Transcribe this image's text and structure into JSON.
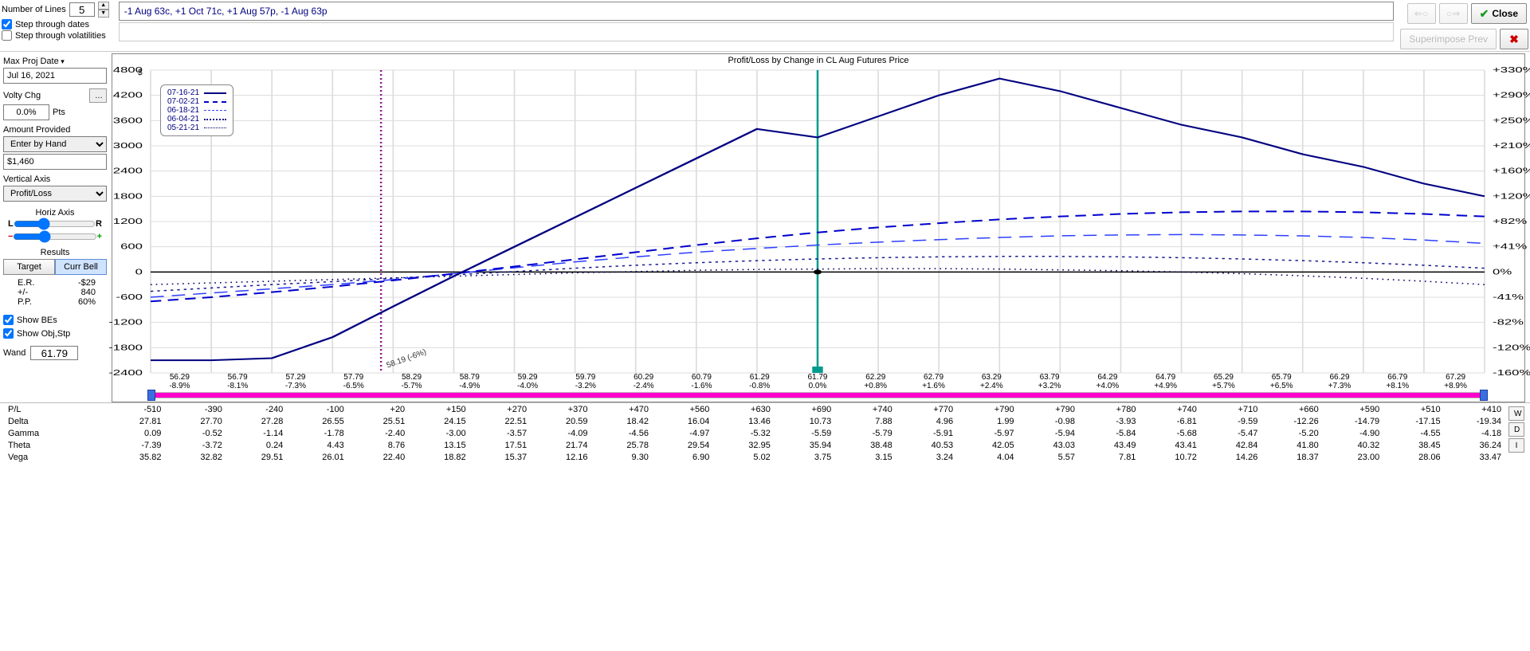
{
  "header": {
    "numLinesLabel": "Number of Lines",
    "numLines": "5",
    "stepDatesLabel": "Step through dates",
    "stepVolsLabel": "Step through volatilities",
    "stepDatesChecked": true,
    "stepVolsChecked": false,
    "strategy": "-1 Aug 63c, +1 Oct 71c, +1 Aug 57p, -1 Aug 63p",
    "closeLabel": "Close",
    "navPrev": "⇐○",
    "navNext": "○⇒",
    "superimposePrev": "Superimpose Prev",
    "bigX": "✖"
  },
  "left": {
    "maxProjDateLabel": "Max Proj Date",
    "maxProjDate": "Jul 16, 2021",
    "voltyChgLabel": "Volty Chg",
    "voltyChg": "0.0%",
    "pts": "Pts",
    "amountProvidedLabel": "Amount Provided",
    "amountProvidedMode": "Enter by Hand",
    "amount": "$1,460",
    "verticalAxisLabel": "Vertical Axis",
    "verticalAxis": "Profit/Loss",
    "horizAxisLabel": "Horiz Axis",
    "L": "L",
    "R": "R",
    "resultsLabel": "Results",
    "tabTarget": "Target",
    "tabCurrBell": "Curr Bell",
    "stats": {
      "erLabel": "E.R.",
      "er": "-$29",
      "pmLabel": "+/-",
      "pm": "840",
      "ppLabel": "P.P.",
      "pp": "60%"
    },
    "showBEsLabel": "Show BEs",
    "showObjStpLabel": "Show Obj,Stp",
    "showBEsChecked": true,
    "showObjStpChecked": true,
    "wandLabel": "Wand",
    "wand": "61.79"
  },
  "chart": {
    "title": "Profit/Loss by Change in CL Aug Futures Price",
    "yUnit": "$",
    "yTicks": [
      4800,
      4200,
      3600,
      3000,
      2400,
      1800,
      1200,
      600,
      0,
      -600,
      -1200,
      -1800,
      -2400
    ],
    "yTicksRight": [
      "+330%",
      "+290%",
      "+250%",
      "+210%",
      "+160%",
      "+120%",
      "+82%",
      "+41%",
      "0%",
      "-41%",
      "-82%",
      "-120%",
      "-160%"
    ],
    "xTop": [
      "56.29",
      "56.79",
      "57.29",
      "57.79",
      "58.29",
      "58.79",
      "59.29",
      "59.79",
      "60.29",
      "60.79",
      "61.29",
      "61.79",
      "62.29",
      "62.79",
      "63.29",
      "63.79",
      "64.29",
      "64.79",
      "65.29",
      "65.79",
      "66.29",
      "66.79",
      "67.29"
    ],
    "xBottom": [
      "-8.9%",
      "-8.1%",
      "-7.3%",
      "-6.5%",
      "-5.7%",
      "-4.9%",
      "-4.0%",
      "-3.2%",
      "-2.4%",
      "-1.6%",
      "-0.8%",
      "0.0%",
      "+0.8%",
      "+1.6%",
      "+2.4%",
      "+3.2%",
      "+4.0%",
      "+4.9%",
      "+5.7%",
      "+6.5%",
      "+7.3%",
      "+8.1%",
      "+8.9%"
    ],
    "legend": [
      "07-16-21",
      "07-02-21",
      "06-18-21",
      "06-04-21",
      "05-21-21"
    ],
    "markers": {
      "purpleLineX": 58.19,
      "tealLineX": 61.79,
      "zeroPointX": 61.79,
      "annotation": "58.19 (-6%)"
    },
    "xmin": 56.29,
    "xmax": 67.29,
    "ymin": -2400,
    "ymax": 4800,
    "series": {
      "s0_solid": {
        "color": "#000080",
        "width": 2,
        "dash": "",
        "y": [
          -2100,
          -2100,
          -2050,
          -1550,
          -820,
          -100,
          600,
          1300,
          2000,
          2700,
          3400,
          3200,
          3700,
          4200,
          4600,
          4300,
          3900,
          3500,
          3200,
          2800,
          2500,
          2100,
          1800,
          1450,
          1100
        ]
      },
      "s1_dash43": {
        "color": "#0000cd",
        "width": 2,
        "dash": "8,5",
        "y": [
          -700,
          -600,
          -480,
          -350,
          -200,
          -40,
          130,
          300,
          470,
          640,
          800,
          940,
          1060,
          1160,
          1250,
          1320,
          1380,
          1420,
          1440,
          1440,
          1420,
          1380,
          1320,
          1240,
          1140,
          1020
        ]
      },
      "s2_dash33": {
        "color": "#2e3fff",
        "width": 1.5,
        "dash": "10,6",
        "y": [
          -600,
          -500,
          -400,
          -300,
          -180,
          -40,
          100,
          240,
          360,
          470,
          560,
          640,
          710,
          770,
          820,
          860,
          880,
          890,
          880,
          860,
          820,
          760,
          680,
          580,
          460
        ]
      },
      "s3_dot": {
        "color": "#1a1a8c",
        "width": 1.5,
        "dash": "2,3",
        "y": [
          -460,
          -380,
          -300,
          -230,
          -150,
          -70,
          10,
          90,
          160,
          220,
          270,
          310,
          340,
          360,
          370,
          370,
          360,
          340,
          310,
          270,
          220,
          160,
          90,
          10,
          -80
        ]
      },
      "s4_dotfine": {
        "color": "#000066",
        "width": 1.5,
        "dash": "1,3",
        "y": [
          -300,
          -260,
          -220,
          -180,
          -140,
          -100,
          -60,
          -20,
          10,
          40,
          60,
          70,
          80,
          80,
          70,
          50,
          30,
          0,
          -40,
          -90,
          -150,
          -220,
          -300
        ]
      }
    }
  },
  "greeks": {
    "labels": [
      "P/L",
      "Delta",
      "Gamma",
      "Theta",
      "Vega"
    ],
    "rows": {
      "P/L": [
        "-510",
        "-390",
        "-240",
        "-100",
        "+20",
        "+150",
        "+270",
        "+370",
        "+470",
        "+560",
        "+630",
        "+690",
        "+740",
        "+770",
        "+790",
        "+790",
        "+780",
        "+740",
        "+710",
        "+660",
        "+590",
        "+510",
        "+410"
      ],
      "Delta": [
        "27.81",
        "27.70",
        "27.28",
        "26.55",
        "25.51",
        "24.15",
        "22.51",
        "20.59",
        "18.42",
        "16.04",
        "13.46",
        "10.73",
        "7.88",
        "4.96",
        "1.99",
        "-0.98",
        "-3.93",
        "-6.81",
        "-9.59",
        "-12.26",
        "-14.79",
        "-17.15",
        "-19.34"
      ],
      "Gamma": [
        "0.09",
        "-0.52",
        "-1.14",
        "-1.78",
        "-2.40",
        "-3.00",
        "-3.57",
        "-4.09",
        "-4.56",
        "-4.97",
        "-5.32",
        "-5.59",
        "-5.79",
        "-5.91",
        "-5.97",
        "-5.94",
        "-5.84",
        "-5.68",
        "-5.47",
        "-5.20",
        "-4.90",
        "-4.55",
        "-4.18"
      ],
      "Theta": [
        "-7.39",
        "-3.72",
        "0.24",
        "4.43",
        "8.76",
        "13.15",
        "17.51",
        "21.74",
        "25.78",
        "29.54",
        "32.95",
        "35.94",
        "38.48",
        "40.53",
        "42.05",
        "43.03",
        "43.49",
        "43.41",
        "42.84",
        "41.80",
        "40.32",
        "38.45",
        "36.24"
      ],
      "Vega": [
        "35.82",
        "32.82",
        "29.51",
        "26.01",
        "22.40",
        "18.82",
        "15.37",
        "12.16",
        "9.30",
        "6.90",
        "5.02",
        "3.75",
        "3.15",
        "3.24",
        "4.04",
        "5.57",
        "7.81",
        "10.72",
        "14.26",
        "18.37",
        "23.00",
        "28.06",
        "33.47"
      ]
    },
    "sideButtons": [
      "W",
      "D",
      "I"
    ]
  }
}
